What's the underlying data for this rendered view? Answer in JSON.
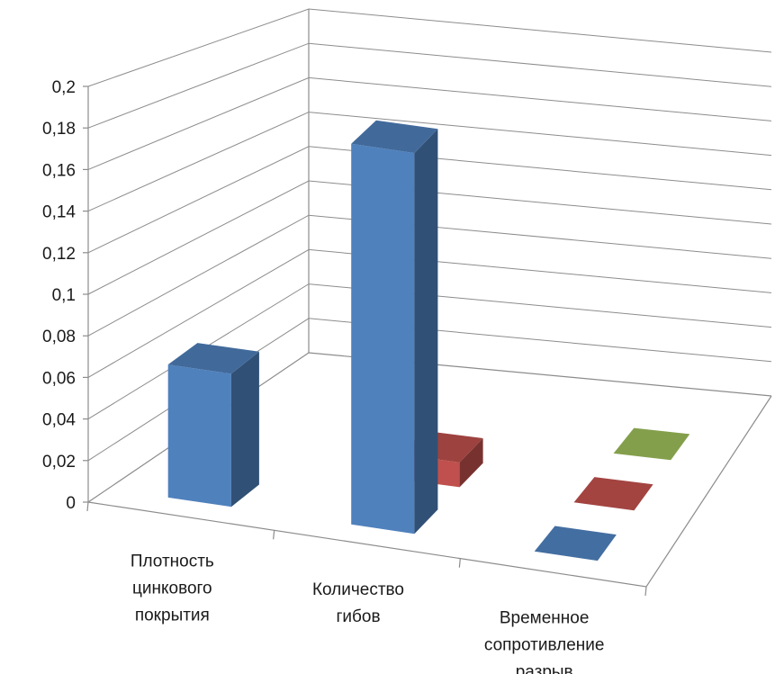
{
  "chart_data": {
    "type": "bar",
    "subtype": "3d-column",
    "title": "",
    "xlabel": "",
    "ylabel": "",
    "categories": [
      "Плотность цинкового покрытия",
      "Количество гибов",
      "Временное сопротивление разрыв"
    ],
    "category_lines": [
      [
        "Плотность",
        "цинкового",
        "покрытия"
      ],
      [
        "Количество",
        "гибов"
      ],
      [
        "Временное",
        "сопротивление",
        "разрыв"
      ]
    ],
    "series": [
      {
        "color": "#4F81BD",
        "values": [
          0.066,
          0.19,
          0.0
        ]
      },
      {
        "color": "#C0504D",
        "values": [
          null,
          0.013,
          0.0
        ]
      },
      {
        "color": "#9BBB59",
        "values": [
          null,
          null,
          0.0
        ]
      }
    ],
    "ylim": [
      0,
      0.2
    ],
    "yticks": [
      "0",
      "0,02",
      "0,04",
      "0,06",
      "0,08",
      "0,1",
      "0,12",
      "0,14",
      "0,16",
      "0,18",
      "0,2"
    ],
    "grid": true,
    "legend": "none"
  }
}
